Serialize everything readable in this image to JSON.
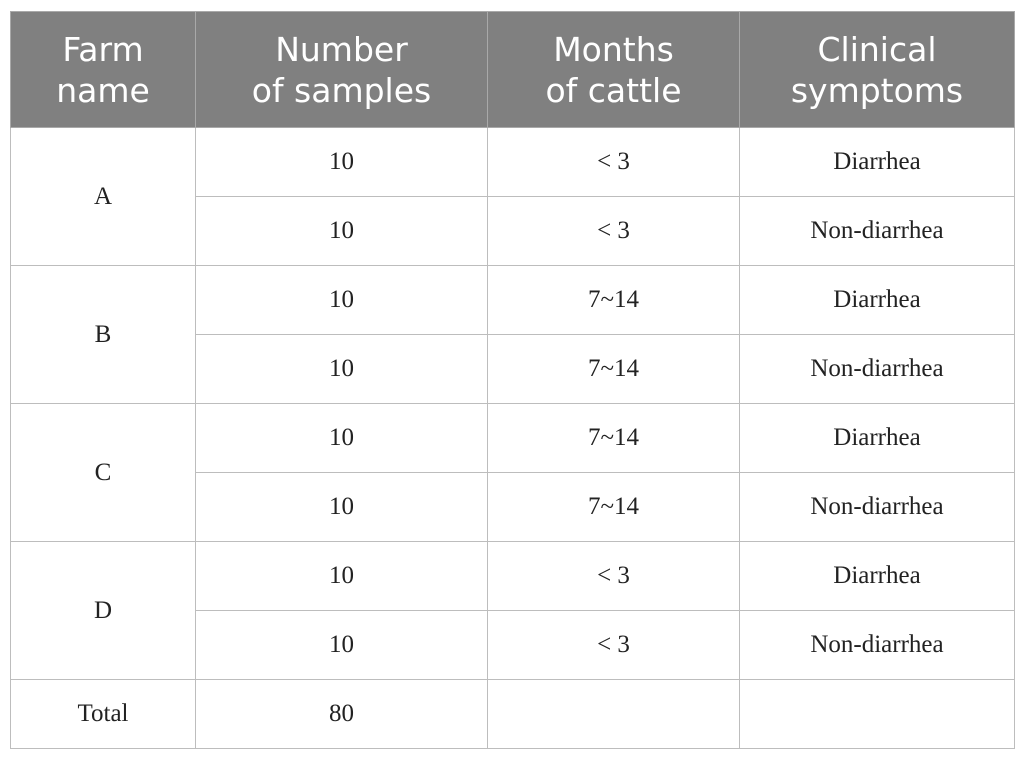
{
  "table": {
    "headers": [
      {
        "line1": "Farm",
        "line2": "name"
      },
      {
        "line1": "Number",
        "line2": "of samples"
      },
      {
        "line1": "Months",
        "line2": "of cattle"
      },
      {
        "line1": "Clinical",
        "line2": "symptoms"
      }
    ],
    "groups": [
      {
        "farm": "A",
        "rows": [
          {
            "samples": "10",
            "months": "< 3",
            "symptoms": "Diarrhea"
          },
          {
            "samples": "10",
            "months": "< 3",
            "symptoms": "Non-diarrhea"
          }
        ]
      },
      {
        "farm": "B",
        "rows": [
          {
            "samples": "10",
            "months": "7~14",
            "symptoms": "Diarrhea"
          },
          {
            "samples": "10",
            "months": "7~14",
            "symptoms": "Non-diarrhea"
          }
        ]
      },
      {
        "farm": "C",
        "rows": [
          {
            "samples": "10",
            "months": "7~14",
            "symptoms": "Diarrhea"
          },
          {
            "samples": "10",
            "months": "7~14",
            "symptoms": "Non-diarrhea"
          }
        ]
      },
      {
        "farm": "D",
        "rows": [
          {
            "samples": "10",
            "months": "< 3",
            "symptoms": "Diarrhea"
          },
          {
            "samples": "10",
            "months": "< 3",
            "symptoms": "Non-diarrhea"
          }
        ]
      }
    ],
    "total": {
      "label": "Total",
      "samples": "80",
      "months": "",
      "symptoms": ""
    }
  },
  "colors": {
    "header_bg": "#808080",
    "header_text": "#ffffff",
    "grid": "#bdbdbd"
  }
}
